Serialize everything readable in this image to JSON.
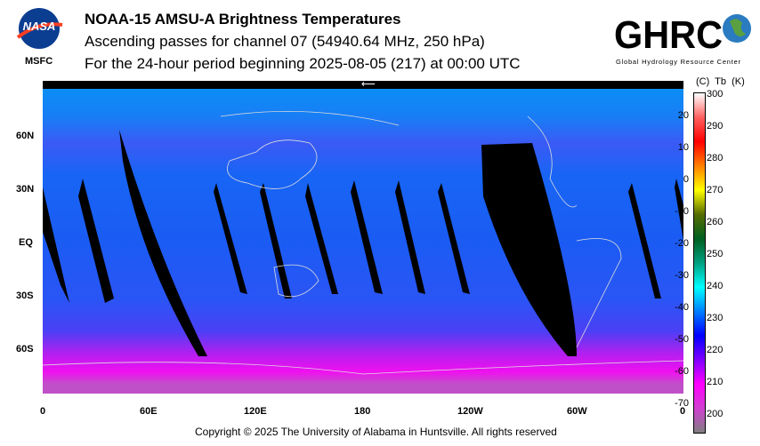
{
  "header": {
    "title": "NOAA-15 AMSU-A Brightness Temperatures",
    "subtitle": "Ascending passes for channel 07 (54940.64 MHz, 250 hPa)",
    "period": "For the 24-hour period beginning 2025-08-05 (217) at 00:00 UTC"
  },
  "logos": {
    "nasa": "NASA",
    "nasa_center": "MSFC",
    "ghrc": "GHRC",
    "ghrc_full": "Global Hydrology Resource Center"
  },
  "map": {
    "lat_labels": [
      "60N",
      "30N",
      "EQ",
      "30S",
      "60S"
    ],
    "lon_labels": [
      "0",
      "60E",
      "120E",
      "180",
      "120W",
      "60W",
      "0"
    ],
    "arrow": "⟵"
  },
  "colorbar": {
    "header": "(C)  Tb  (K)",
    "celsius": [
      "20",
      "10",
      "0",
      "-10",
      "-20",
      "-30",
      "-40",
      "-50",
      "-60",
      "-70"
    ],
    "kelvin": [
      "300",
      "290",
      "280",
      "270",
      "260",
      "250",
      "240",
      "230",
      "220",
      "210",
      "200"
    ],
    "colors": [
      "#ffffff",
      "#ff6060",
      "#ff0000",
      "#ff8000",
      "#ffff00",
      "#556b00",
      "#006020",
      "#00a080",
      "#00ffff",
      "#0080ff",
      "#0000ff",
      "#8000ff",
      "#ff00ff",
      "#d040d0",
      "#808080"
    ]
  },
  "footer": {
    "copyright": "Copyright © 2025 The University of Alabama in Huntsville.  All rights reserved"
  }
}
